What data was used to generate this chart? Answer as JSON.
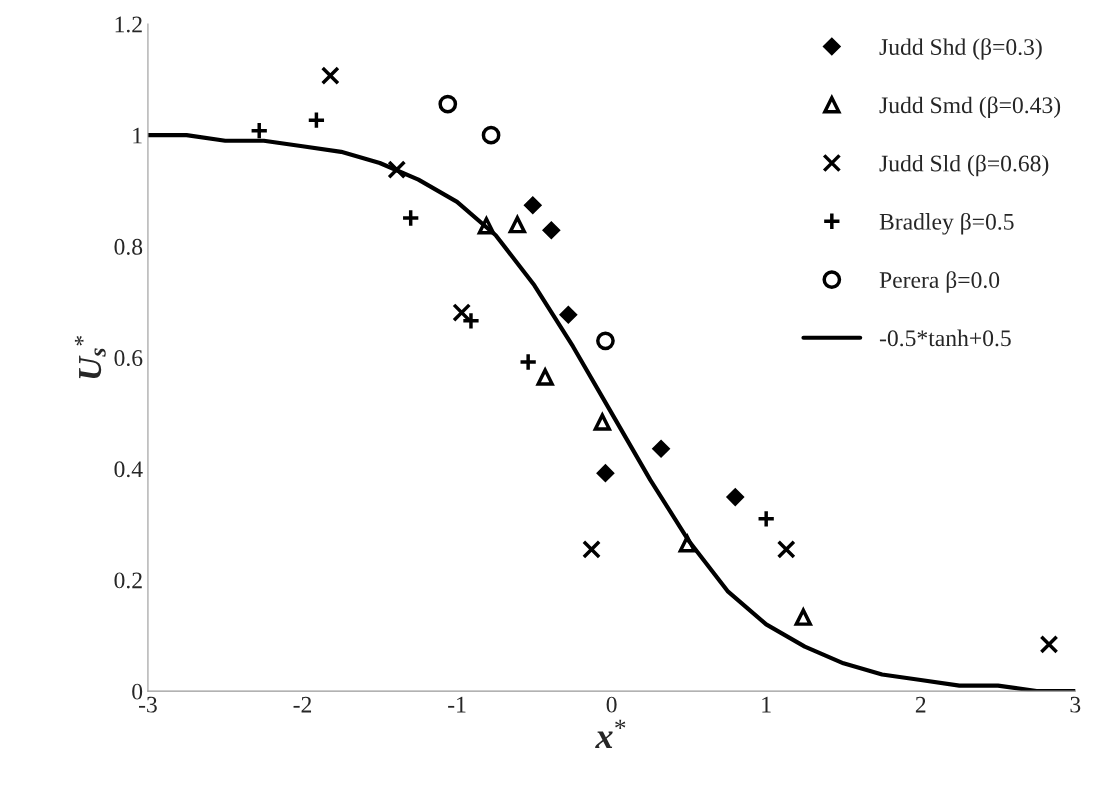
{
  "chart_data": {
    "type": "scatter",
    "xlabel": "x$^{*}$",
    "ylabel": "U$_{s}$$^{*}$",
    "xlim": [
      -3,
      3
    ],
    "xticks": [
      -3,
      -2,
      -1,
      0,
      1,
      2,
      3
    ],
    "ylim": [
      0,
      1.2
    ],
    "yticks": [
      0,
      0.2,
      0.4,
      0.6,
      0.8,
      1,
      1.2
    ],
    "grid": false,
    "legend": "top right",
    "series": [
      {
        "name": "Judd Shd (β=0.3)",
        "marker": "diamond",
        "color": "#000000",
        "x": [
          -0.51,
          -0.39,
          -0.28,
          -0.04,
          0.32,
          0.8
        ],
        "values": [
          0.874,
          0.829,
          0.677,
          0.392,
          0.436,
          0.349
        ]
      },
      {
        "name": "Judd Smd (β=0.43)",
        "marker": "triangle",
        "color": "#000000",
        "x": [
          -0.81,
          -0.61,
          -0.43,
          -0.06,
          0.49,
          1.24
        ],
        "values": [
          0.837,
          0.839,
          0.565,
          0.484,
          0.265,
          0.133
        ]
      },
      {
        "name": "Judd Sld (β=0.68)",
        "marker": "cross",
        "color": "#000000",
        "x": [
          -1.82,
          -1.39,
          -0.97,
          -0.13,
          1.13,
          2.83
        ],
        "values": [
          1.107,
          0.938,
          0.681,
          0.255,
          0.255,
          0.084
        ]
      },
      {
        "name": "Bradley β=0.5",
        "marker": "plus",
        "color": "#000000",
        "x": [
          -2.28,
          -1.91,
          -1.3,
          -0.91,
          -0.54,
          1.0
        ],
        "values": [
          1.008,
          1.027,
          0.851,
          0.666,
          0.592,
          0.31
        ]
      },
      {
        "name": "Perera β=0.0",
        "marker": "circle",
        "color": "#000000",
        "x": [
          -1.06,
          -0.78,
          -0.04
        ],
        "values": [
          1.056,
          1.0,
          0.63
        ]
      },
      {
        "name": "-0.5*tanh+0.5",
        "type": "line",
        "marker": "none",
        "line_style": "solid",
        "color": "#000000",
        "x": [
          -3,
          -2.75,
          -2.5,
          -2.25,
          -2,
          -1.75,
          -1.5,
          -1.25,
          -1,
          -0.75,
          -0.5,
          -0.25,
          0,
          0.25,
          0.5,
          0.75,
          1,
          1.25,
          1.5,
          1.75,
          2,
          2.25,
          2.5,
          2.75,
          3
        ],
        "values": [
          1.0,
          1.0,
          0.99,
          0.99,
          0.98,
          0.97,
          0.95,
          0.92,
          0.88,
          0.82,
          0.73,
          0.62,
          0.5,
          0.38,
          0.27,
          0.18,
          0.12,
          0.08,
          0.05,
          0.03,
          0.02,
          0.01,
          0.01,
          0.0,
          0.0
        ]
      }
    ]
  }
}
